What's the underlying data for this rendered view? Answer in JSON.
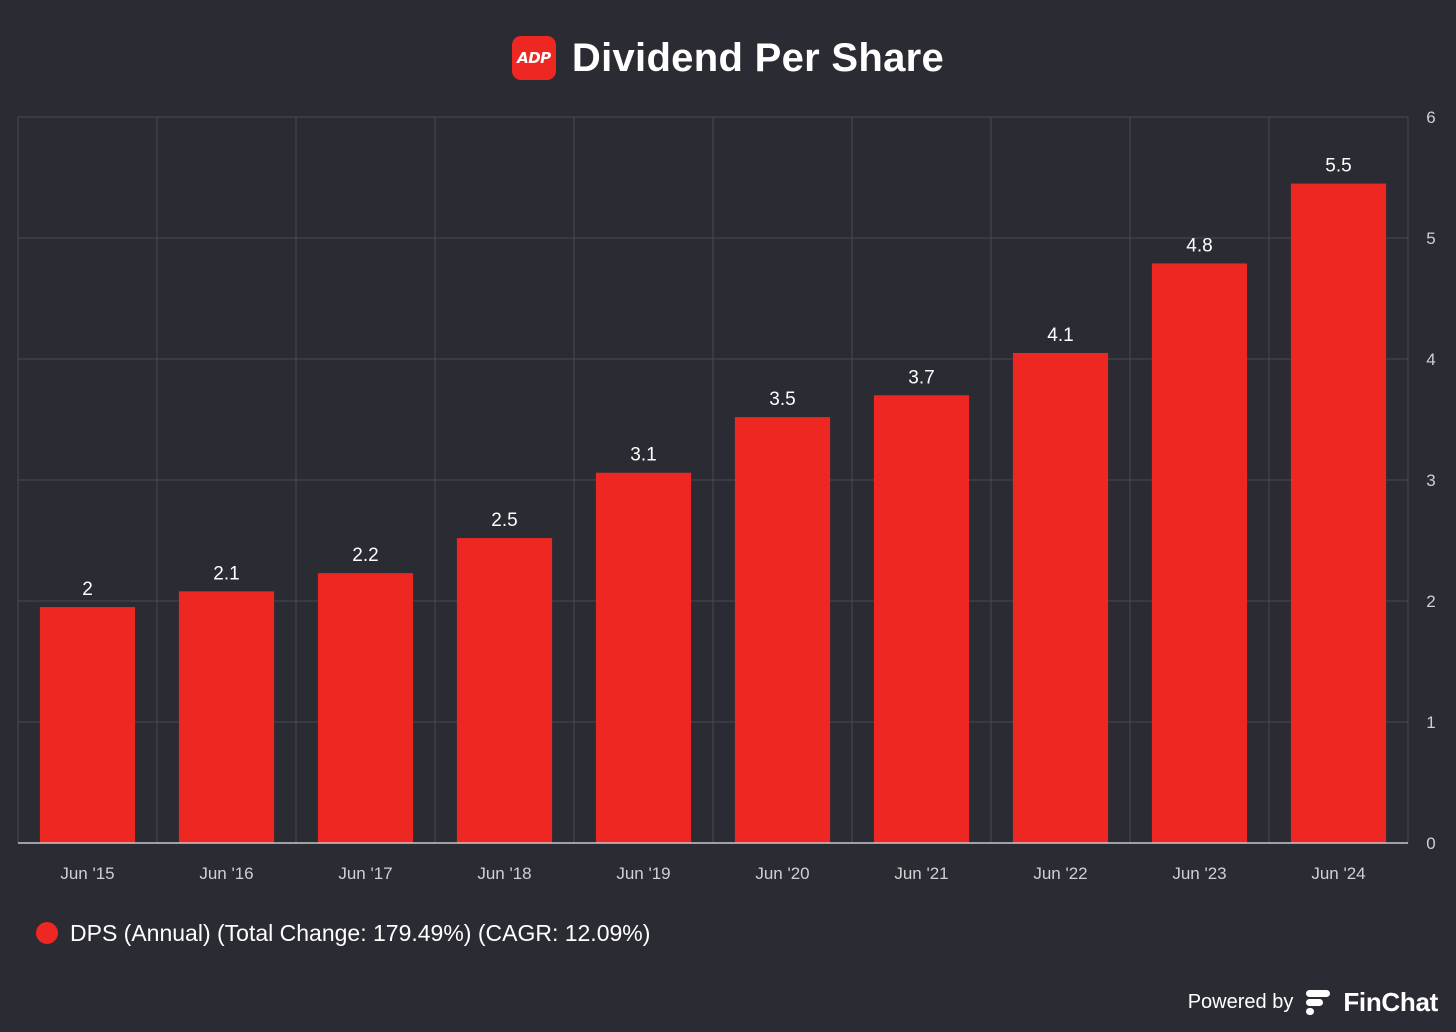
{
  "header": {
    "logo_text": "ADP",
    "title": "Dividend Per Share"
  },
  "colors": {
    "background": "#2a2b33",
    "bar": "#ee2723",
    "grid": "#494a54",
    "axis": "#c8c8cc",
    "tick": "#d0d0d4"
  },
  "chart_data": {
    "type": "bar",
    "title": "Dividend Per Share",
    "categories": [
      "Jun '15",
      "Jun '16",
      "Jun '17",
      "Jun '18",
      "Jun '19",
      "Jun '20",
      "Jun '21",
      "Jun '22",
      "Jun '23",
      "Jun '24"
    ],
    "series": [
      {
        "name": "DPS (Annual) (Total Change: 179.49%) (CAGR: 12.09%)",
        "values": [
          1.95,
          2.08,
          2.23,
          2.52,
          3.06,
          3.52,
          3.7,
          4.05,
          4.79,
          5.45
        ],
        "labels": [
          "2",
          "2.1",
          "2.2",
          "2.5",
          "3.1",
          "3.5",
          "3.7",
          "4.1",
          "4.8",
          "5.5"
        ]
      }
    ],
    "yticks": [
      0,
      1,
      2,
      3,
      4,
      5,
      6
    ],
    "ylim": [
      0,
      6
    ],
    "grid": true,
    "y_axis_side": "right",
    "legend_position": "bottom-left"
  },
  "legend": {
    "label": "DPS (Annual) (Total Change: 179.49%) (CAGR: 12.09%)"
  },
  "footer": {
    "powered_by": "Powered by",
    "brand": "FinChat",
    "brand_icon": "finchat-logo-icon"
  }
}
